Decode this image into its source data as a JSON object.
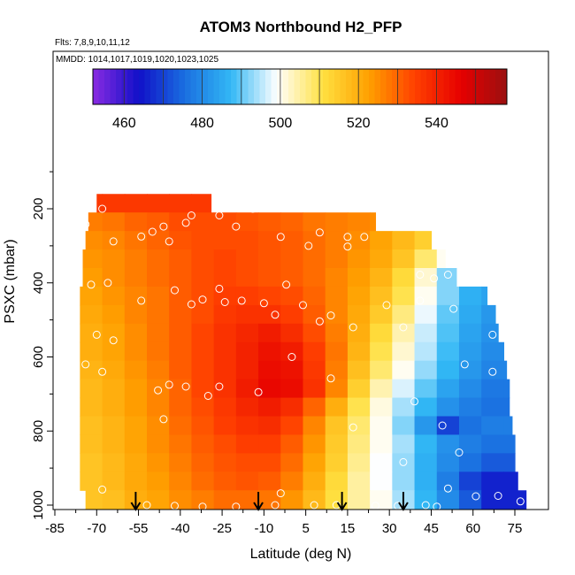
{
  "chart_data": {
    "type": "heatmap",
    "title": "ATOM3 Northbound H2_PFP",
    "subtitle": "Flts: 7,8,9,10,11,12",
    "annotation": "MMDD: 1014,1017,1019,1020,1023,1025",
    "xlabel": "Latitude (deg N)",
    "ylabel": "PSXC (mbar)",
    "xlim": [
      -85,
      85
    ],
    "ylim": [
      1000,
      100
    ],
    "x_ticks": [
      "-85",
      "-70",
      "-55",
      "-40",
      "-25",
      "-10",
      "5",
      "15",
      "30",
      "45",
      "60",
      "75"
    ],
    "y_ticks": [
      "200",
      "400",
      "600",
      "800",
      "1000"
    ],
    "colorbar": {
      "min": 452,
      "max": 558,
      "ticks": [
        "460",
        "480",
        "500",
        "520",
        "540"
      ],
      "colors": [
        "#8a2be2",
        "#1010c8",
        "#1a6fe0",
        "#32b8f5",
        "#ffffff",
        "#ffe040",
        "#ffa000",
        "#ff4000",
        "#e60000",
        "#9a1010"
      ]
    },
    "latitude_edges": [
      -76,
      -68,
      -60,
      -52,
      -44,
      -36,
      -28,
      -20,
      -12,
      -4,
      4,
      12,
      20,
      28,
      36,
      44,
      52,
      60,
      68,
      76,
      84
    ],
    "row_pressure_bounds": [
      [
        160,
        210
      ],
      [
        210,
        260
      ],
      [
        260,
        310
      ],
      [
        310,
        360
      ],
      [
        360,
        410
      ],
      [
        410,
        460
      ],
      [
        460,
        510
      ],
      [
        510,
        560
      ],
      [
        560,
        610
      ],
      [
        610,
        660
      ],
      [
        660,
        710
      ],
      [
        710,
        760
      ],
      [
        760,
        810
      ],
      [
        810,
        860
      ],
      [
        860,
        910
      ],
      [
        910,
        960
      ],
      [
        960,
        1010
      ]
    ],
    "row_extents": [
      [
        -70,
        -29
      ],
      [
        -73,
        30
      ],
      [
        -74,
        50
      ],
      [
        -75,
        55
      ],
      [
        -75,
        59
      ],
      [
        -76,
        70
      ],
      [
        -77,
        73
      ],
      [
        -77,
        74
      ],
      [
        -77,
        76
      ],
      [
        -77,
        77
      ],
      [
        -77,
        78
      ],
      [
        -77,
        78
      ],
      [
        -76,
        79
      ],
      [
        -76,
        80
      ],
      [
        -76,
        80
      ],
      [
        -76,
        81
      ],
      [
        -74,
        84
      ]
    ],
    "grid_values": [
      [
        536,
        536,
        536,
        536,
        536,
        536,
        536,
        536,
        536,
        536,
        536,
        536,
        536,
        536,
        536,
        536,
        536,
        536,
        536,
        536
      ],
      [
        527,
        528,
        530,
        531,
        533,
        533,
        533,
        532,
        531,
        530,
        528,
        527,
        526,
        525,
        524,
        524,
        524,
        524,
        524,
        524
      ],
      [
        525,
        526,
        528,
        530,
        532,
        533,
        533,
        533,
        532,
        531,
        529,
        527,
        525,
        522,
        518,
        514,
        512,
        510,
        510,
        510
      ],
      [
        524,
        525,
        527,
        529,
        531,
        533,
        534,
        533,
        532,
        531,
        529,
        527,
        524,
        521,
        516,
        508,
        500,
        496,
        494,
        494
      ],
      [
        523,
        525,
        527,
        529,
        531,
        533,
        534,
        533,
        532,
        531,
        529,
        526,
        523,
        519,
        512,
        502,
        492,
        488,
        486,
        486
      ],
      [
        522,
        524,
        526,
        528,
        531,
        533,
        535,
        535,
        534,
        533,
        530,
        526,
        522,
        517,
        510,
        500,
        492,
        486,
        484,
        484
      ],
      [
        521,
        523,
        526,
        528,
        531,
        533,
        536,
        537,
        537,
        535,
        531,
        526,
        521,
        515,
        507,
        498,
        490,
        485,
        482,
        482
      ],
      [
        520,
        522,
        525,
        528,
        531,
        534,
        537,
        539,
        541,
        538,
        533,
        527,
        520,
        512,
        504,
        496,
        489,
        484,
        481,
        481
      ],
      [
        520,
        522,
        525,
        528,
        531,
        534,
        537,
        540,
        543,
        541,
        535,
        528,
        519,
        510,
        502,
        495,
        488,
        483,
        480,
        480
      ],
      [
        519,
        521,
        524,
        527,
        531,
        534,
        537,
        540,
        544,
        543,
        536,
        527,
        517,
        508,
        500,
        493,
        487,
        482,
        479,
        479
      ],
      [
        518,
        520,
        523,
        526,
        530,
        534,
        537,
        541,
        545,
        544,
        537,
        526,
        514,
        504,
        497,
        490,
        484,
        480,
        477,
        477
      ],
      [
        518,
        520,
        523,
        526,
        530,
        533,
        536,
        539,
        541,
        538,
        530,
        520,
        510,
        501,
        494,
        487,
        481,
        478,
        476,
        476
      ],
      [
        517,
        519,
        522,
        525,
        529,
        532,
        535,
        537,
        538,
        534,
        526,
        516,
        508,
        500,
        492,
        482,
        470,
        476,
        478,
        478
      ],
      [
        517,
        519,
        522,
        525,
        528,
        531,
        533,
        535,
        535,
        531,
        524,
        515,
        507,
        500,
        494,
        487,
        481,
        478,
        476,
        476
      ],
      [
        516,
        518,
        521,
        524,
        527,
        530,
        532,
        533,
        533,
        529,
        522,
        514,
        506,
        499,
        493,
        486,
        480,
        476,
        473,
        473
      ],
      [
        516,
        518,
        521,
        523,
        526,
        529,
        531,
        532,
        531,
        527,
        520,
        512,
        505,
        499,
        493,
        486,
        478,
        470,
        466,
        466
      ],
      [
        516,
        517,
        520,
        522,
        525,
        527,
        529,
        529,
        528,
        524,
        518,
        511,
        505,
        500,
        494,
        487,
        480,
        473,
        466,
        466
      ]
    ],
    "samples": [
      [
        -68,
        200
      ],
      [
        -36,
        218
      ],
      [
        -26,
        218
      ],
      [
        -14,
        200
      ],
      [
        -74,
        242
      ],
      [
        -50,
        262
      ],
      [
        -46,
        248
      ],
      [
        -38,
        238
      ],
      [
        -20,
        248
      ],
      [
        -4,
        276
      ],
      [
        10,
        264
      ],
      [
        20,
        276
      ],
      [
        26,
        276
      ],
      [
        36,
        248
      ],
      [
        -64,
        288
      ],
      [
        -54,
        275
      ],
      [
        -44,
        288
      ],
      [
        6,
        300
      ],
      [
        20,
        302
      ],
      [
        -72,
        405
      ],
      [
        -66,
        400
      ],
      [
        -42,
        420
      ],
      [
        -32,
        445
      ],
      [
        -26,
        416
      ],
      [
        -2,
        405
      ],
      [
        46,
        378
      ],
      [
        51,
        388
      ],
      [
        56,
        378
      ],
      [
        80,
        400
      ],
      [
        -54,
        448
      ],
      [
        -36,
        458
      ],
      [
        -24,
        452
      ],
      [
        -18,
        448
      ],
      [
        -10,
        455
      ],
      [
        4,
        460
      ],
      [
        14,
        488
      ],
      [
        34,
        460
      ],
      [
        46,
        448
      ],
      [
        58,
        470
      ],
      [
        -6,
        486
      ],
      [
        10,
        504
      ],
      [
        -78,
        525
      ],
      [
        -70,
        540
      ],
      [
        -64,
        555
      ],
      [
        22,
        520
      ],
      [
        40,
        520
      ],
      [
        72,
        540
      ],
      [
        -74,
        620
      ],
      [
        -68,
        640
      ],
      [
        -48,
        690
      ],
      [
        -44,
        675
      ],
      [
        -38,
        680
      ],
      [
        -30,
        705
      ],
      [
        -26,
        680
      ],
      [
        -12,
        695
      ],
      [
        0,
        600
      ],
      [
        14,
        658
      ],
      [
        62,
        620
      ],
      [
        72,
        640
      ],
      [
        -46,
        768
      ],
      [
        22,
        790
      ],
      [
        44,
        720
      ],
      [
        54,
        785
      ],
      [
        40,
        884
      ],
      [
        60,
        858
      ],
      [
        56,
        955
      ],
      [
        -80,
        965
      ],
      [
        -68,
        958
      ],
      [
        -52,
        1000
      ],
      [
        -42,
        1002
      ],
      [
        -32,
        1004
      ],
      [
        -20,
        1004
      ],
      [
        -6,
        1000
      ],
      [
        -4,
        968
      ],
      [
        8,
        1000
      ],
      [
        16,
        1000
      ],
      [
        30,
        1002
      ],
      [
        38,
        1002
      ],
      [
        48,
        1000
      ],
      [
        52,
        1004
      ],
      [
        66,
        976
      ],
      [
        74,
        975
      ],
      [
        82,
        990
      ]
    ],
    "arrows": [
      -56,
      -12,
      18,
      40
    ]
  }
}
